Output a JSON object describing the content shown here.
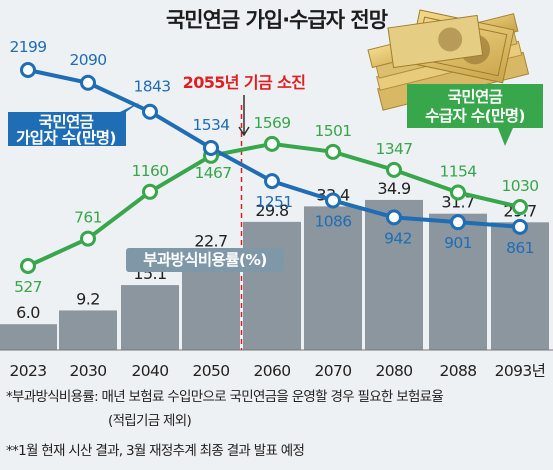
{
  "title": "국민연금 가입·수급자 전망",
  "notes": [
    "*부과방식비용률: 매년 보험료 수입만으로 국민연금을 운영할 경우 필요한 보험료율",
    "(적립기금 제외)",
    "**1월 현재 시산 결과, 3월 재정추계 최종 결과 발표 예정"
  ],
  "chart_data": {
    "type": "line+bar",
    "categories": [
      "2023",
      "2030",
      "2040",
      "2050",
      "2060",
      "2070",
      "2080",
      "2088",
      "2093년"
    ],
    "series": [
      {
        "name": "국민연금 가입자 수(만명)",
        "kind": "line",
        "color": "#1f6db5",
        "values": [
          2199,
          2090,
          1843,
          1534,
          1251,
          1086,
          942,
          901,
          861
        ]
      },
      {
        "name": "국민연금 수급자 수(만명)",
        "kind": "line",
        "color": "#38a64a",
        "values": [
          527,
          761,
          1160,
          1467,
          1569,
          1501,
          1347,
          1154,
          1030
        ]
      },
      {
        "name": "부과방식비용률(%)",
        "kind": "bar",
        "color": "#8c969f",
        "values": [
          6.0,
          9.2,
          15.1,
          22.7,
          29.8,
          33.4,
          34.9,
          31.7,
          29.7
        ]
      }
    ],
    "value_labels": {
      "members": [
        "2199",
        "2090",
        "1843",
        "1534",
        "1251",
        "1086",
        "942",
        "901",
        "861"
      ],
      "recipients": [
        "527",
        "761",
        "1160",
        "1467",
        "1569",
        "1501",
        "1347",
        "1154",
        "1030"
      ],
      "rates": [
        "6.0",
        "9.2",
        "15.1",
        "22.7",
        "29.8",
        "33.4",
        "34.9",
        "31.7",
        "29.7"
      ]
    },
    "legend": {
      "members": [
        "국민연금",
        "가입자 수(만명)"
      ],
      "recipients": [
        "국민연금",
        "수급자 수(만명)"
      ],
      "rate": "부과방식비용률(%)"
    },
    "annotation": {
      "text": "2055년 기금 소진",
      "between": [
        "2050",
        "2060"
      ]
    },
    "colors": {
      "members": "#1f6db5",
      "recipients": "#38a64a",
      "bars": "#8c969f",
      "annotation": "#e02020",
      "rate_label_bg": "#7e98a8"
    },
    "decoration": "money-stack-image"
  }
}
